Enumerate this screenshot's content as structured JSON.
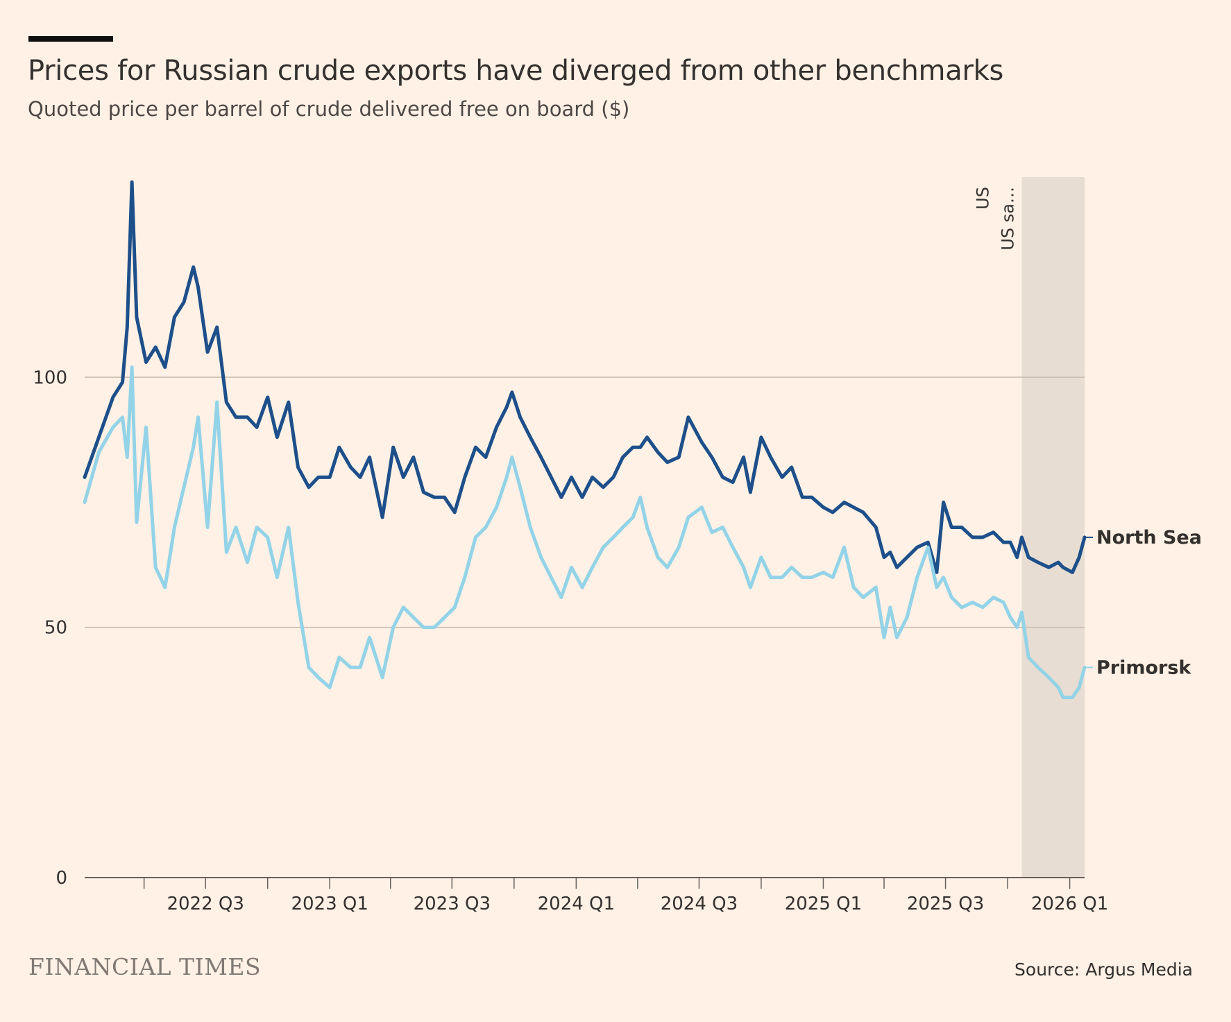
{
  "header": {
    "title": "Prices for Russian crude exports have diverged from other benchmarks",
    "subtitle": "Quoted price per barrel of crude delivered free on board ($)"
  },
  "footer": {
    "brand": "FINANCIAL TIMES",
    "source": "Source: Argus Media"
  },
  "colors": {
    "background": "#fff1e5",
    "north_sea": "#1d4f8a",
    "primorsk": "#93d3e8",
    "shade": "#e8ddd2",
    "grid": "#c9bdb2",
    "axis": "#66605c",
    "text": "#33302e"
  },
  "chart_data": {
    "type": "line",
    "title": "Prices for Russian crude exports have diverged from other benchmarks",
    "subtitle": "Quoted price per barrel of crude delivered free on board ($)",
    "xlabel": "",
    "ylabel": "",
    "ylim": [
      0,
      140
    ],
    "yticks": [
      0,
      50,
      100
    ],
    "xlim": [
      "2022-01-03",
      "2026-01-23"
    ],
    "xtick_labels": [
      {
        "label": "2022 Q3",
        "date": "2022-07-01"
      },
      {
        "label": "2023 Q1",
        "date": "2023-01-01"
      },
      {
        "label": "2023 Q3",
        "date": "2023-07-01"
      },
      {
        "label": "2024 Q1",
        "date": "2024-01-01"
      },
      {
        "label": "2024 Q3",
        "date": "2024-07-01"
      },
      {
        "label": "2025 Q1",
        "date": "2025-01-01"
      },
      {
        "label": "2025 Q3",
        "date": "2025-07-01"
      },
      {
        "label": "2026 Q1",
        "date": "2026-01-01"
      }
    ],
    "xtick_minor": [
      "2022-04-01",
      "2022-10-01",
      "2023-04-01",
      "2023-10-01",
      "2024-04-01",
      "2024-10-01",
      "2025-04-01",
      "2025-10-01"
    ],
    "grid": true,
    "legend": "direct labels at line ends",
    "annotations": [
      {
        "label": "US",
        "date": "2025-10-22"
      },
      {
        "label": "US sa…",
        "date": "2025-10-22"
      }
    ],
    "shaded_range": {
      "from": "2025-10-22",
      "to": "2026-01-23"
    },
    "series": [
      {
        "name": "North Sea",
        "x": [
          "2022-01-03",
          "2022-01-24",
          "2022-02-14",
          "2022-02-28",
          "2022-03-07",
          "2022-03-14",
          "2022-03-21",
          "2022-04-04",
          "2022-04-18",
          "2022-05-02",
          "2022-05-16",
          "2022-05-30",
          "2022-06-13",
          "2022-06-20",
          "2022-07-04",
          "2022-07-18",
          "2022-08-01",
          "2022-08-15",
          "2022-09-01",
          "2022-09-15",
          "2022-10-01",
          "2022-10-15",
          "2022-11-01",
          "2022-11-15",
          "2022-12-01",
          "2022-12-15",
          "2023-01-01",
          "2023-01-15",
          "2023-02-01",
          "2023-02-15",
          "2023-03-01",
          "2023-03-20",
          "2023-04-05",
          "2023-04-20",
          "2023-05-05",
          "2023-05-20",
          "2023-06-05",
          "2023-06-20",
          "2023-07-05",
          "2023-07-20",
          "2023-08-05",
          "2023-08-20",
          "2023-09-05",
          "2023-09-20",
          "2023-09-28",
          "2023-10-10",
          "2023-10-25",
          "2023-11-10",
          "2023-11-25",
          "2023-12-10",
          "2023-12-25",
          "2024-01-10",
          "2024-01-25",
          "2024-02-10",
          "2024-02-25",
          "2024-03-10",
          "2024-03-25",
          "2024-04-05",
          "2024-04-15",
          "2024-05-01",
          "2024-05-15",
          "2024-06-01",
          "2024-06-15",
          "2024-07-05",
          "2024-07-20",
          "2024-08-05",
          "2024-08-20",
          "2024-09-05",
          "2024-09-15",
          "2024-10-01",
          "2024-10-15",
          "2024-11-01",
          "2024-11-15",
          "2024-12-01",
          "2024-12-15",
          "2025-01-01",
          "2025-01-15",
          "2025-02-01",
          "2025-02-15",
          "2025-03-01",
          "2025-03-20",
          "2025-04-01",
          "2025-04-10",
          "2025-04-20",
          "2025-05-05",
          "2025-05-20",
          "2025-06-05",
          "2025-06-18",
          "2025-06-28",
          "2025-07-10",
          "2025-07-25",
          "2025-08-10",
          "2025-08-25",
          "2025-09-10",
          "2025-09-25",
          "2025-10-05",
          "2025-10-15",
          "2025-10-22",
          "2025-11-01",
          "2025-11-15",
          "2025-12-01",
          "2025-12-15",
          "2025-12-22",
          "2026-01-05",
          "2026-01-15",
          "2026-01-23"
        ],
        "values": [
          80,
          88,
          96,
          99,
          110,
          139,
          112,
          103,
          106,
          102,
          112,
          115,
          122,
          118,
          105,
          110,
          95,
          92,
          92,
          90,
          96,
          88,
          95,
          82,
          78,
          80,
          80,
          86,
          82,
          80,
          84,
          72,
          86,
          80,
          84,
          77,
          76,
          76,
          73,
          80,
          86,
          84,
          90,
          94,
          97,
          92,
          88,
          84,
          80,
          76,
          80,
          76,
          80,
          78,
          80,
          84,
          86,
          86,
          88,
          85,
          83,
          84,
          92,
          87,
          84,
          80,
          79,
          84,
          77,
          88,
          84,
          80,
          82,
          76,
          76,
          74,
          73,
          75,
          74,
          73,
          70,
          64,
          65,
          62,
          64,
          66,
          67,
          61,
          75,
          70,
          70,
          68,
          68,
          69,
          67,
          67,
          64,
          68,
          64,
          63,
          62,
          63,
          62,
          61,
          64,
          68
        ]
      },
      {
        "name": "Primorsk",
        "x": [
          "2022-01-03",
          "2022-01-24",
          "2022-02-14",
          "2022-02-28",
          "2022-03-07",
          "2022-03-14",
          "2022-03-21",
          "2022-04-04",
          "2022-04-18",
          "2022-05-02",
          "2022-05-16",
          "2022-05-30",
          "2022-06-13",
          "2022-06-20",
          "2022-07-04",
          "2022-07-18",
          "2022-08-01",
          "2022-08-15",
          "2022-09-01",
          "2022-09-15",
          "2022-10-01",
          "2022-10-15",
          "2022-11-01",
          "2022-11-15",
          "2022-12-01",
          "2022-12-15",
          "2023-01-01",
          "2023-01-15",
          "2023-02-01",
          "2023-02-15",
          "2023-03-01",
          "2023-03-20",
          "2023-04-05",
          "2023-04-20",
          "2023-05-05",
          "2023-05-20",
          "2023-06-05",
          "2023-06-20",
          "2023-07-05",
          "2023-07-20",
          "2023-08-05",
          "2023-08-20",
          "2023-09-05",
          "2023-09-20",
          "2023-09-28",
          "2023-10-10",
          "2023-10-25",
          "2023-11-10",
          "2023-11-25",
          "2023-12-10",
          "2023-12-25",
          "2024-01-10",
          "2024-01-25",
          "2024-02-10",
          "2024-02-25",
          "2024-03-10",
          "2024-03-25",
          "2024-04-05",
          "2024-04-15",
          "2024-05-01",
          "2024-05-15",
          "2024-06-01",
          "2024-06-15",
          "2024-07-05",
          "2024-07-20",
          "2024-08-05",
          "2024-08-20",
          "2024-09-05",
          "2024-09-15",
          "2024-10-01",
          "2024-10-15",
          "2024-11-01",
          "2024-11-15",
          "2024-12-01",
          "2024-12-15",
          "2025-01-01",
          "2025-01-15",
          "2025-02-01",
          "2025-02-15",
          "2025-03-01",
          "2025-03-20",
          "2025-04-01",
          "2025-04-10",
          "2025-04-20",
          "2025-05-05",
          "2025-05-20",
          "2025-06-05",
          "2025-06-18",
          "2025-06-28",
          "2025-07-10",
          "2025-07-25",
          "2025-08-10",
          "2025-08-25",
          "2025-09-10",
          "2025-09-25",
          "2025-10-05",
          "2025-10-15",
          "2025-10-22",
          "2025-11-01",
          "2025-11-15",
          "2025-12-01",
          "2025-12-15",
          "2025-12-22",
          "2026-01-05",
          "2026-01-15",
          "2026-01-23"
        ],
        "values": [
          75,
          85,
          90,
          92,
          84,
          102,
          71,
          90,
          62,
          58,
          70,
          78,
          86,
          92,
          70,
          95,
          65,
          70,
          63,
          70,
          68,
          60,
          70,
          55,
          42,
          40,
          38,
          44,
          42,
          42,
          48,
          40,
          50,
          54,
          52,
          50,
          50,
          52,
          54,
          60,
          68,
          70,
          74,
          80,
          84,
          78,
          70,
          64,
          60,
          56,
          62,
          58,
          62,
          66,
          68,
          70,
          72,
          76,
          70,
          64,
          62,
          66,
          72,
          74,
          69,
          70,
          66,
          62,
          58,
          64,
          60,
          60,
          62,
          60,
          60,
          61,
          60,
          66,
          58,
          56,
          58,
          48,
          54,
          48,
          52,
          60,
          66,
          58,
          60,
          56,
          54,
          55,
          54,
          56,
          55,
          52,
          50,
          53,
          44,
          42,
          40,
          38,
          36,
          36,
          38,
          42
        ]
      }
    ]
  }
}
